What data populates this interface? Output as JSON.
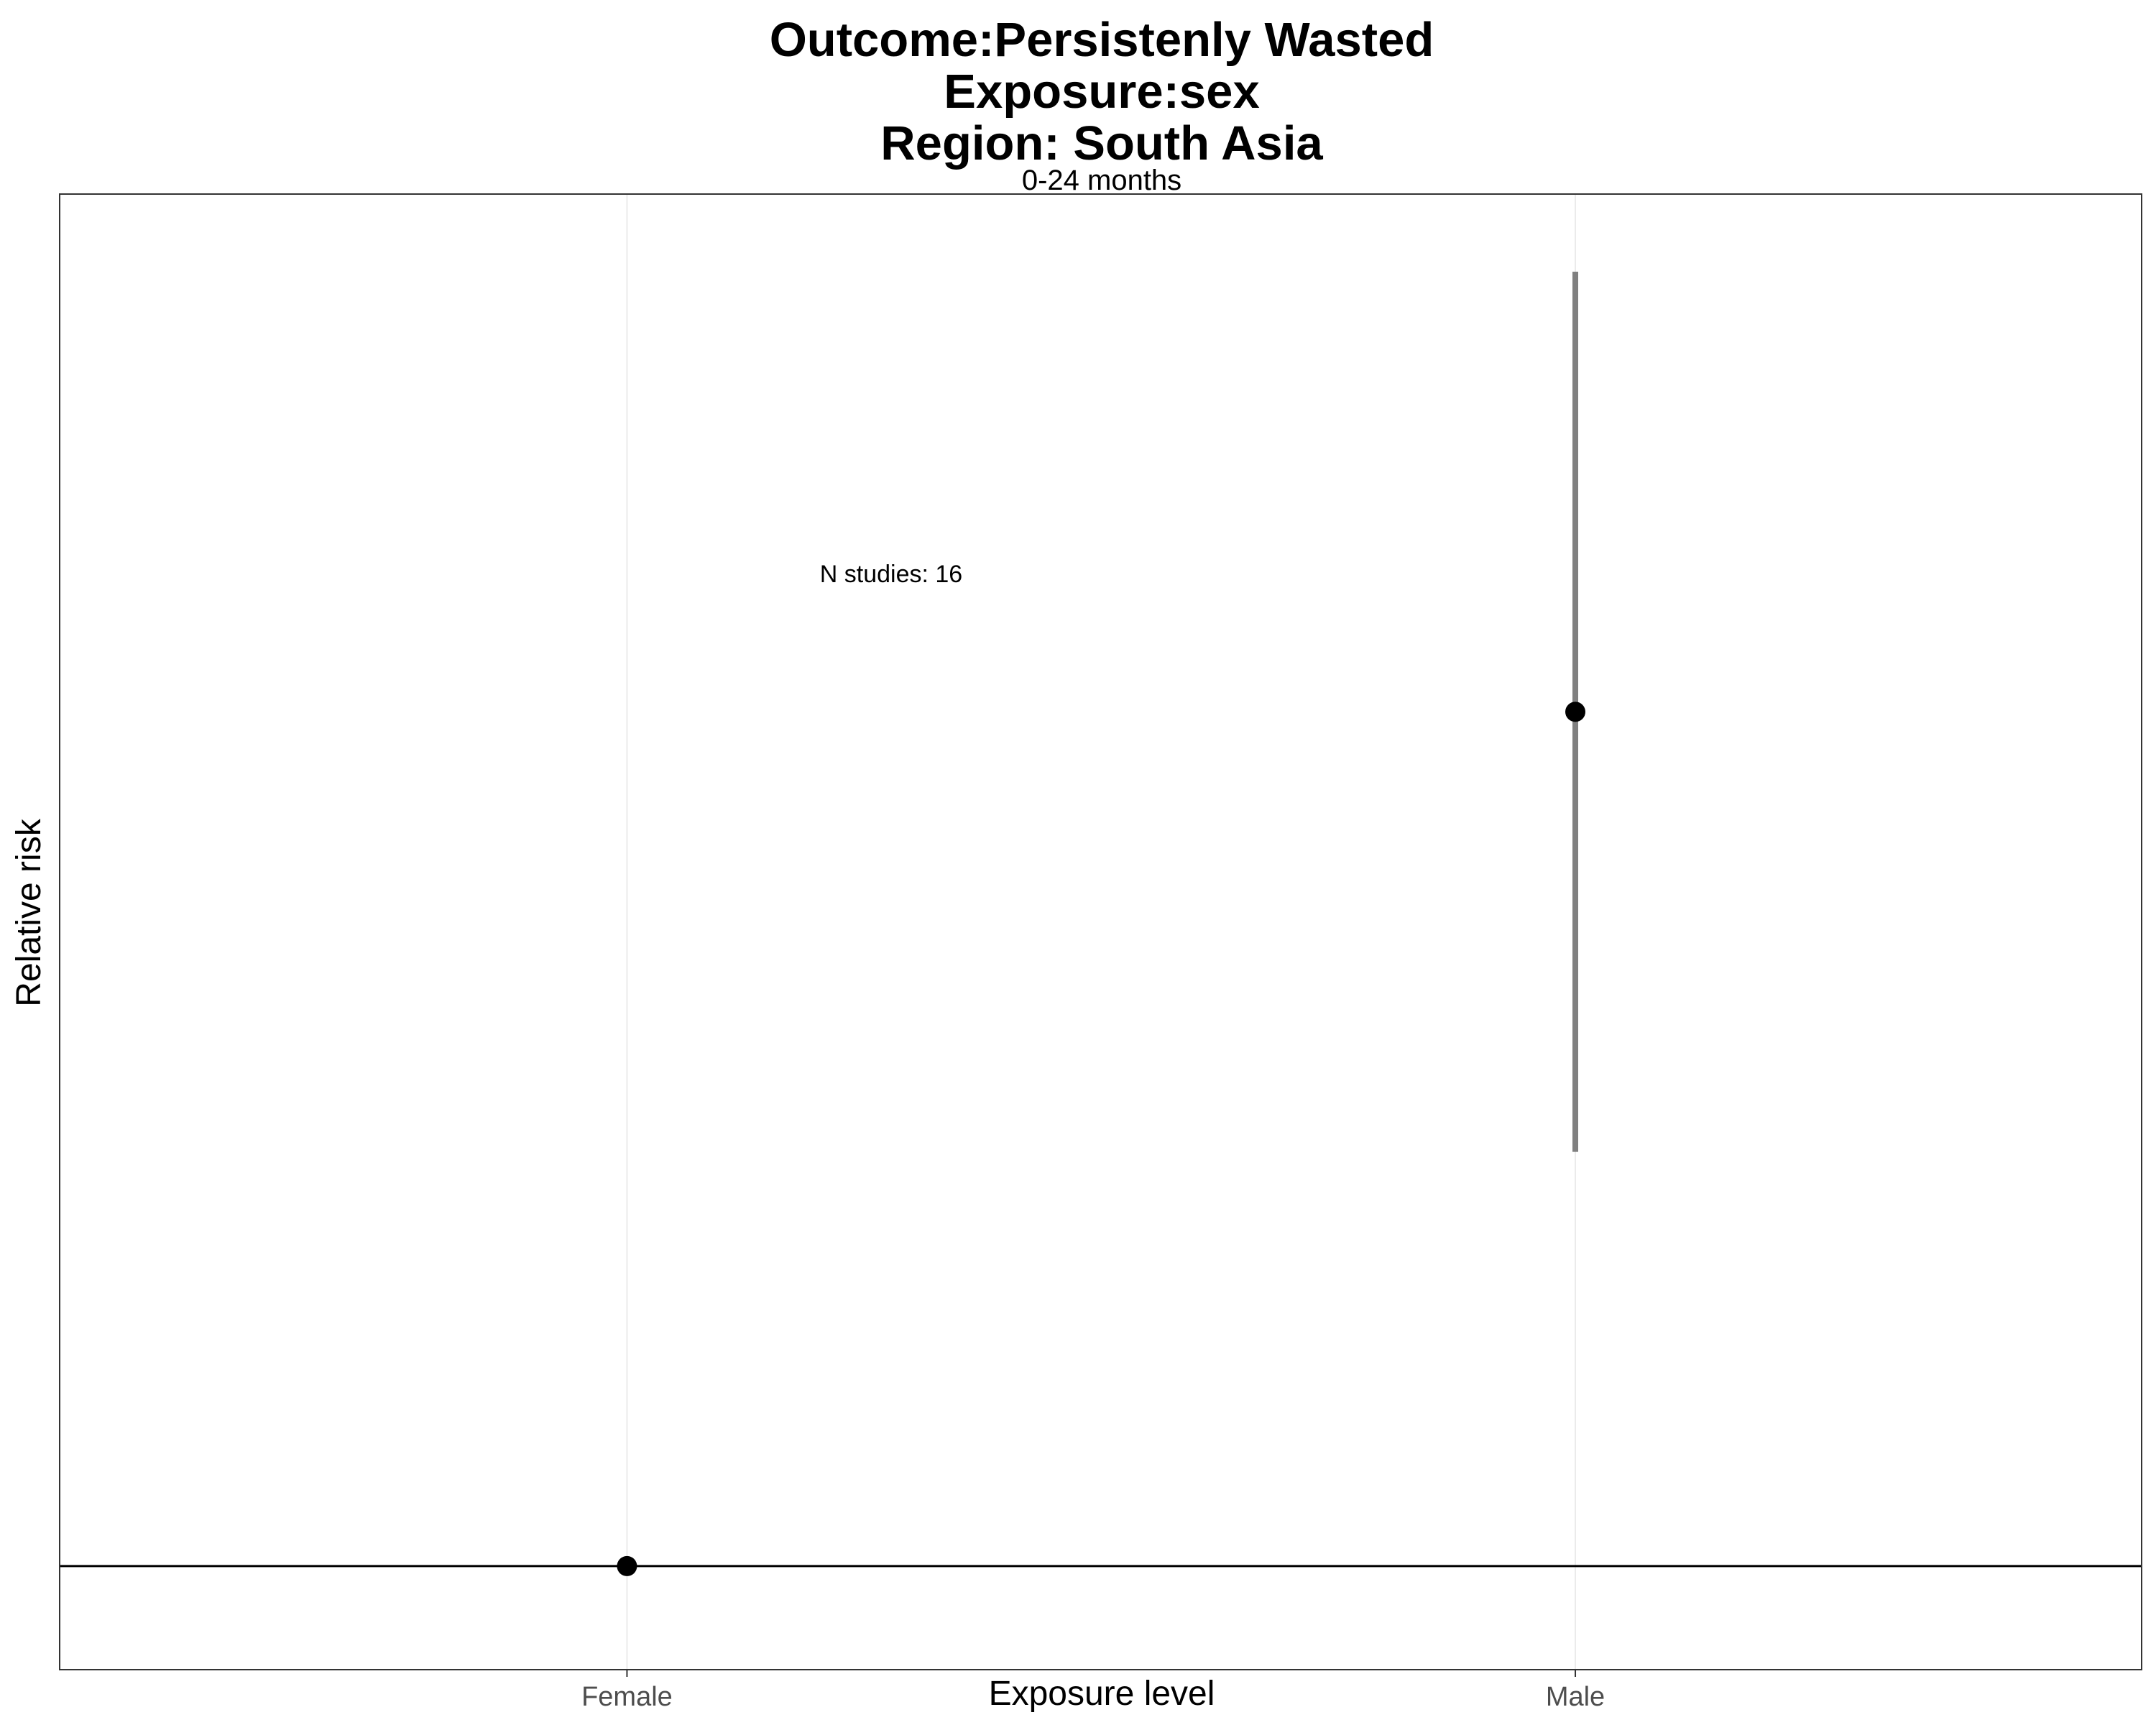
{
  "chart_data": {
    "type": "scatter",
    "title_lines": [
      "Outcome:Persistenly Wasted",
      "Exposure:sex",
      "Region: South Asia"
    ],
    "subtitle": "0-24 months",
    "xlabel": "Exposure level",
    "ylabel": "Relative risk",
    "categories": [
      "Female",
      "Male"
    ],
    "points": [
      {
        "category": "Female",
        "estimate": 1.0
      },
      {
        "category": "Male",
        "estimate": 1.33,
        "ci_lower": 1.16,
        "ci_upper": 1.5
      }
    ],
    "reference_line": 1.0,
    "ylim": [
      0.96,
      1.53
    ],
    "y_ticks_shown": false,
    "grid": "vertical major only",
    "annotation": "N studies: 16",
    "colors": {
      "point": "#000000",
      "ci_line": "#808080",
      "reference_line": "#000000",
      "grid": "#ebebeb",
      "panel_border": "#333333"
    }
  }
}
